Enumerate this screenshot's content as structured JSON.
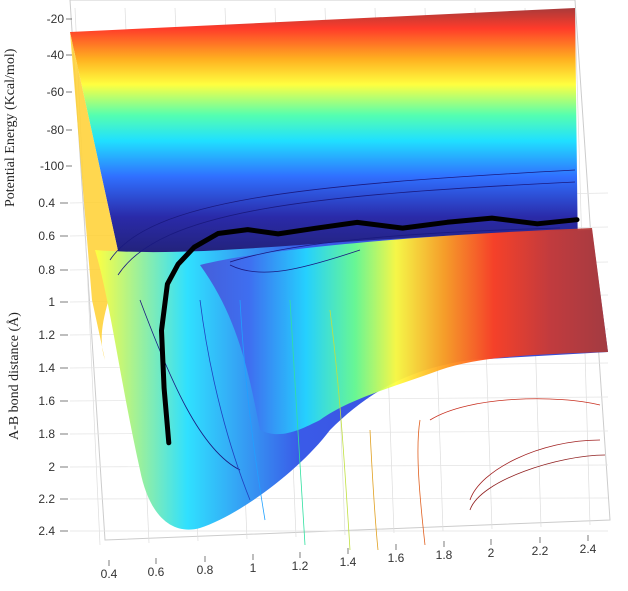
{
  "chart_data": {
    "type": "surface",
    "view": "3-d perspective, tilted",
    "colormap": "jet",
    "xlabel": "",
    "ylabel": "A-B bond distance (Å)",
    "zlabel": "Potential Energy (Kcal/mol)",
    "x_ticks": [
      "0.4",
      "0.6",
      "0.8",
      "1",
      "1.2",
      "1.4",
      "1.6",
      "1.8",
      "2",
      "2.2",
      "2.4"
    ],
    "y_ticks": [
      "0.4",
      "0.6",
      "0.8",
      "1",
      "1.2",
      "1.4",
      "1.6",
      "1.8",
      "2",
      "2.2",
      "2.4"
    ],
    "z_ticks": [
      "-20",
      "-40",
      "-60",
      "-80",
      "-100"
    ],
    "xlim": [
      0.4,
      2.5
    ],
    "ylim": [
      0.4,
      2.5
    ],
    "zlim": [
      -110,
      -20
    ],
    "grid": true,
    "trajectory": {
      "color": "#000000",
      "x": [
        0.69,
        0.69,
        0.7,
        0.74,
        0.79,
        0.86,
        0.96,
        1.08,
        1.2,
        1.35,
        1.52,
        1.7,
        1.88,
        2.06,
        2.24,
        2.4
      ],
      "y": [
        1.88,
        1.55,
        1.2,
        0.92,
        0.8,
        0.7,
        0.62,
        0.6,
        0.63,
        0.6,
        0.57,
        0.61,
        0.58,
        0.56,
        0.6,
        0.58
      ]
    }
  }
}
